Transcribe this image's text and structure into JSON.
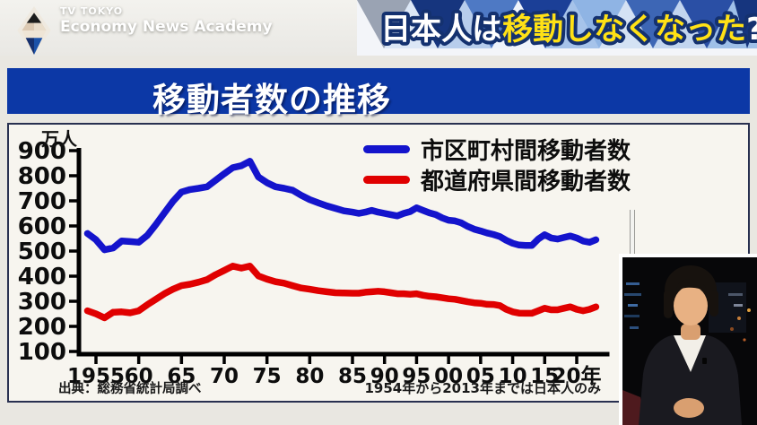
{
  "banner": {
    "station": "TV TOKYO",
    "program": "Economy News Academy",
    "headline": {
      "part1_white": "日本人は",
      "part2_yellow": "移動しなくなった",
      "part3_white": "?"
    },
    "colors": {
      "headline_yellow": "#ffe115",
      "headline_outline": "#14316f"
    }
  },
  "title_bar": {
    "text": "移動者数の推移",
    "bg_color": "#0c38a6"
  },
  "notes": {
    "source": "出典：総務省統計局調べ",
    "scope": "1954年から2013年までは日本人のみ"
  },
  "chart_data": {
    "type": "line",
    "title": "移動者数の推移",
    "unit_label": "万人",
    "ylabel": "万人",
    "xlabel": "年",
    "ylim": [
      100,
      900
    ],
    "y_ticks": [
      100,
      200,
      300,
      400,
      500,
      600,
      700,
      800,
      900
    ],
    "x_tick_years": [
      1955,
      1960,
      1965,
      1970,
      1975,
      1980,
      1985,
      1990,
      1995,
      2000,
      2005,
      2010,
      2015,
      2020
    ],
    "x_tick_labels": [
      "1955",
      "60",
      "65",
      "70",
      "75",
      "80",
      "85",
      "90",
      "95",
      "00",
      "05",
      "10",
      "15",
      "20年"
    ],
    "grid": false,
    "legend_position": "top-right",
    "years": [
      1954,
      1955,
      1956,
      1957,
      1958,
      1959,
      1960,
      1961,
      1962,
      1963,
      1964,
      1965,
      1966,
      1967,
      1968,
      1969,
      1970,
      1971,
      1972,
      1973,
      1974,
      1975,
      1976,
      1977,
      1978,
      1979,
      1980,
      1981,
      1982,
      1983,
      1984,
      1985,
      1986,
      1987,
      1988,
      1989,
      1990,
      1991,
      1992,
      1993,
      1994,
      1995,
      1996,
      1997,
      1998,
      1999,
      2000,
      2001,
      2002,
      2003,
      2004,
      2005,
      2006,
      2007,
      2008,
      2009,
      2010,
      2011,
      2012,
      2013,
      2014,
      2015,
      2016,
      2017,
      2018,
      2019,
      2020,
      2021,
      2022,
      2023
    ],
    "series": [
      {
        "name": "市区町村間移動者数",
        "color": "#1414cc",
        "values": [
          570,
          545,
          505,
          512,
          540,
          538,
          535,
          562,
          605,
          652,
          698,
          735,
          745,
          750,
          756,
          782,
          808,
          832,
          840,
          858,
          795,
          772,
          756,
          750,
          742,
          722,
          705,
          692,
          680,
          670,
          660,
          655,
          650,
          655,
          662,
          655,
          650,
          645,
          640,
          650,
          657,
          672,
          662,
          652,
          645,
          632,
          623,
          620,
          612,
          598,
          587,
          580,
          572,
          566,
          558,
          543,
          531,
          524,
          522,
          522,
          548,
          565,
          552,
          548,
          554,
          560,
          552,
          540,
          535,
          545
        ]
      },
      {
        "name": "都道府県間移動者数",
        "color": "#e00000",
        "values": [
          262,
          250,
          234,
          256,
          258,
          254,
          262,
          286,
          308,
          330,
          348,
          362,
          368,
          376,
          386,
          406,
          423,
          440,
          432,
          440,
          401,
          388,
          378,
          372,
          362,
          353,
          348,
          342,
          338,
          334,
          333,
          332,
          332,
          336,
          338,
          340,
          338,
          334,
          330,
          330,
          328,
          330,
          324,
          320,
          318,
          314,
          310,
          308,
          303,
          298,
          294,
          292,
          288,
          287,
          283,
          268,
          258,
          253,
          252,
          252,
          262,
          272,
          266,
          266,
          272,
          278,
          268,
          262,
          268,
          278
        ]
      }
    ]
  }
}
